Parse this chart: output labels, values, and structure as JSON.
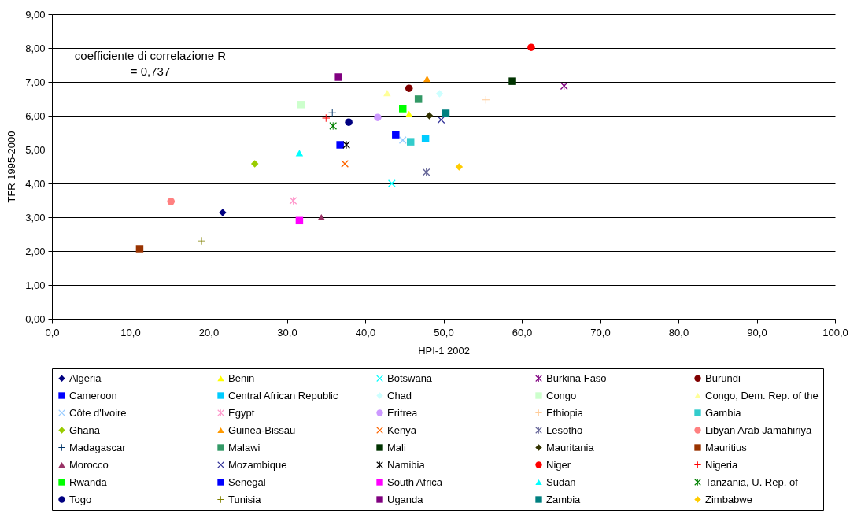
{
  "chart_data": {
    "type": "scatter",
    "xlabel": "HPI-1 2002",
    "ylabel": "TFR 1995-2000",
    "xlim": [
      0,
      100
    ],
    "ylim": [
      0,
      9
    ],
    "xticks": [
      {
        "value": 0,
        "label": "0,0"
      },
      {
        "value": 10,
        "label": "10,0"
      },
      {
        "value": 20,
        "label": "20,0"
      },
      {
        "value": 30,
        "label": "30,0"
      },
      {
        "value": 40,
        "label": "40,0"
      },
      {
        "value": 50,
        "label": "50,0"
      },
      {
        "value": 60,
        "label": "60,0"
      },
      {
        "value": 70,
        "label": "70,0"
      },
      {
        "value": 80,
        "label": "80,0"
      },
      {
        "value": 90,
        "label": "90,0"
      },
      {
        "value": 100,
        "label": "100,0"
      }
    ],
    "yticks": [
      {
        "value": 0,
        "label": "0,00"
      },
      {
        "value": 1,
        "label": "1,00"
      },
      {
        "value": 2,
        "label": "2,00"
      },
      {
        "value": 3,
        "label": "3,00"
      },
      {
        "value": 4,
        "label": "4,00"
      },
      {
        "value": 5,
        "label": "5,00"
      },
      {
        "value": 6,
        "label": "6,00"
      },
      {
        "value": 7,
        "label": "7,00"
      },
      {
        "value": 8,
        "label": "8,00"
      },
      {
        "value": 9,
        "label": "9,00"
      }
    ],
    "grid": "y",
    "legend": "bottom",
    "annotations": [
      "coefficiente di correlazione R\n= 0,737"
    ],
    "series": [
      {
        "name": "Algeria",
        "color": "#000080",
        "marker": "diamond",
        "x": [
          21.8
        ],
        "values": [
          3.14
        ]
      },
      {
        "name": "Benin",
        "color": "#ffff00",
        "marker": "triangle",
        "x": [
          45.6
        ],
        "values": [
          6.05
        ]
      },
      {
        "name": "Botswana",
        "color": "#00ffff",
        "marker": "cross",
        "x": [
          43.4
        ],
        "values": [
          4.0
        ]
      },
      {
        "name": "Burkina Faso",
        "color": "#800080",
        "marker": "star",
        "x": [
          65.4
        ],
        "values": [
          6.88
        ]
      },
      {
        "name": "Burundi",
        "color": "#800000",
        "marker": "circle",
        "x": [
          45.6
        ],
        "values": [
          6.81
        ]
      },
      {
        "name": "Cameroon",
        "color": "#0000ff",
        "marker": "square",
        "x": [
          36.8
        ],
        "values": [
          5.14
        ]
      },
      {
        "name": "Central African Republic",
        "color": "#00ccff",
        "marker": "square",
        "x": [
          47.7
        ],
        "values": [
          5.32
        ]
      },
      {
        "name": "Chad",
        "color": "#ccffff",
        "marker": "diamond",
        "x": [
          49.5
        ],
        "values": [
          6.65
        ]
      },
      {
        "name": "Congo",
        "color": "#ccffcc",
        "marker": "square",
        "x": [
          31.8
        ],
        "values": [
          6.33
        ]
      },
      {
        "name": "Congo, Dem. Rep. of the",
        "color": "#ffff99",
        "marker": "triangle",
        "x": [
          42.8
        ],
        "values": [
          6.67
        ]
      },
      {
        "name": "Côte d'Ivoire",
        "color": "#99ccff",
        "marker": "cross",
        "x": [
          44.8
        ],
        "values": [
          5.28
        ]
      },
      {
        "name": "Egypt",
        "color": "#ff99cc",
        "marker": "star",
        "x": [
          30.8
        ],
        "values": [
          3.49
        ]
      },
      {
        "name": "Eritrea",
        "color": "#cc99ff",
        "marker": "circle",
        "x": [
          41.6
        ],
        "values": [
          5.95
        ]
      },
      {
        "name": "Ethiopia",
        "color": "#ffcc99",
        "marker": "plus",
        "x": [
          55.4
        ],
        "values": [
          6.47
        ]
      },
      {
        "name": "Gambia",
        "color": "#33cccc",
        "marker": "square",
        "x": [
          45.8
        ],
        "values": [
          5.23
        ]
      },
      {
        "name": "Ghana",
        "color": "#99cc00",
        "marker": "diamond",
        "x": [
          25.9
        ],
        "values": [
          4.58
        ]
      },
      {
        "name": "Guinea-Bissau",
        "color": "#ff9900",
        "marker": "triangle",
        "x": [
          47.9
        ],
        "values": [
          7.09
        ]
      },
      {
        "name": "Kenya",
        "color": "#ff6600",
        "marker": "cross",
        "x": [
          37.4
        ],
        "values": [
          4.58
        ]
      },
      {
        "name": "Lesotho",
        "color": "#666699",
        "marker": "star",
        "x": [
          47.8
        ],
        "values": [
          4.33
        ]
      },
      {
        "name": "Libyan Arab Jamahiriya",
        "color": "#ff8080",
        "marker": "circle",
        "x": [
          15.2
        ],
        "values": [
          3.47
        ]
      },
      {
        "name": "Madagascar",
        "color": "#003366",
        "marker": "plus",
        "x": [
          35.8
        ],
        "values": [
          6.09
        ]
      },
      {
        "name": "Malawi",
        "color": "#339966",
        "marker": "square",
        "x": [
          46.8
        ],
        "values": [
          6.49
        ]
      },
      {
        "name": "Mali",
        "color": "#003300",
        "marker": "square",
        "x": [
          58.8
        ],
        "values": [
          7.02
        ]
      },
      {
        "name": "Mauritania",
        "color": "#333300",
        "marker": "diamond",
        "x": [
          48.2
        ],
        "values": [
          6.0
        ]
      },
      {
        "name": "Mauritius",
        "color": "#993300",
        "marker": "square",
        "x": [
          11.2
        ],
        "values": [
          2.07
        ]
      },
      {
        "name": "Morocco",
        "color": "#993366",
        "marker": "triangle",
        "x": [
          34.4
        ],
        "values": [
          3.0
        ]
      },
      {
        "name": "Mozambique",
        "color": "#333399",
        "marker": "cross",
        "x": [
          49.7
        ],
        "values": [
          5.88
        ]
      },
      {
        "name": "Namibia",
        "color": "#000000",
        "marker": "star",
        "x": [
          37.6
        ],
        "values": [
          5.14
        ]
      },
      {
        "name": "Niger",
        "color": "#ff0000",
        "marker": "circle",
        "x": [
          61.2
        ],
        "values": [
          8.02
        ]
      },
      {
        "name": "Nigeria",
        "color": "#ff0000",
        "marker": "plus",
        "x": [
          35.0
        ],
        "values": [
          5.93
        ]
      },
      {
        "name": "Rwanda",
        "color": "#00ff00",
        "marker": "square",
        "x": [
          44.8
        ],
        "values": [
          6.21
        ]
      },
      {
        "name": "Senegal",
        "color": "#0000ff",
        "marker": "square",
        "x": [
          43.9
        ],
        "values": [
          5.44
        ]
      },
      {
        "name": "South Africa",
        "color": "#ff00ff",
        "marker": "square",
        "x": [
          31.6
        ],
        "values": [
          2.9
        ]
      },
      {
        "name": "Sudan",
        "color": "#00ffff",
        "marker": "triangle",
        "x": [
          31.6
        ],
        "values": [
          4.9
        ]
      },
      {
        "name": "Tanzania, U. Rep. of",
        "color": "#008000",
        "marker": "star",
        "x": [
          35.9
        ],
        "values": [
          5.7
        ]
      },
      {
        "name": "Togo",
        "color": "#000080",
        "marker": "circle",
        "x": [
          37.9
        ],
        "values": [
          5.81
        ]
      },
      {
        "name": "Tunisia",
        "color": "#808000",
        "marker": "plus",
        "x": [
          19.1
        ],
        "values": [
          2.3
        ]
      },
      {
        "name": "Uganda",
        "color": "#800080",
        "marker": "square",
        "x": [
          36.6
        ],
        "values": [
          7.14
        ]
      },
      {
        "name": "Zambia",
        "color": "#008080",
        "marker": "square",
        "x": [
          50.3
        ],
        "values": [
          6.07
        ]
      },
      {
        "name": "Zimbabwe",
        "color": "#ffcc00",
        "marker": "diamond",
        "x": [
          52.0
        ],
        "values": [
          4.49
        ]
      }
    ]
  }
}
